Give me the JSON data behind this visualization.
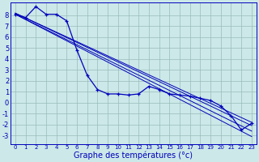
{
  "xlabel": "Graphe des températures (°c)",
  "background_color": "#cce8e8",
  "grid_color": "#99bbbb",
  "line_color": "#0000bb",
  "xlim": [
    -0.5,
    23.5
  ],
  "ylim": [
    -3.8,
    9.2
  ],
  "yticks": [
    -3,
    -2,
    -1,
    0,
    1,
    2,
    3,
    4,
    5,
    6,
    7,
    8
  ],
  "xticks": [
    0,
    1,
    2,
    3,
    4,
    5,
    6,
    7,
    8,
    9,
    10,
    11,
    12,
    13,
    14,
    15,
    16,
    17,
    18,
    19,
    20,
    21,
    22,
    23
  ],
  "obs_x": [
    0,
    1,
    2,
    3,
    4,
    5,
    6,
    7,
    8,
    9,
    10,
    11,
    12,
    13,
    14,
    15,
    16,
    17,
    18,
    19,
    20,
    21,
    22,
    23
  ],
  "obs_y": [
    8.1,
    7.8,
    8.8,
    8.1,
    8.1,
    7.5,
    4.8,
    2.5,
    1.2,
    0.8,
    0.8,
    0.7,
    0.8,
    1.5,
    1.2,
    0.8,
    0.7,
    0.6,
    0.4,
    0.2,
    -0.3,
    -1.2,
    -2.5,
    -1.9
  ],
  "reg_lines": [
    {
      "x": [
        0,
        23
      ],
      "y": [
        8.1,
        -3.1
      ]
    },
    {
      "x": [
        0,
        23
      ],
      "y": [
        8.1,
        -2.6
      ]
    },
    {
      "x": [
        0,
        23
      ],
      "y": [
        8.2,
        -2.1
      ]
    },
    {
      "x": [
        0,
        23
      ],
      "y": [
        8.2,
        -1.8
      ]
    }
  ],
  "xtick_fontsize": 5.0,
  "ytick_fontsize": 6.0,
  "xlabel_fontsize": 7.0
}
